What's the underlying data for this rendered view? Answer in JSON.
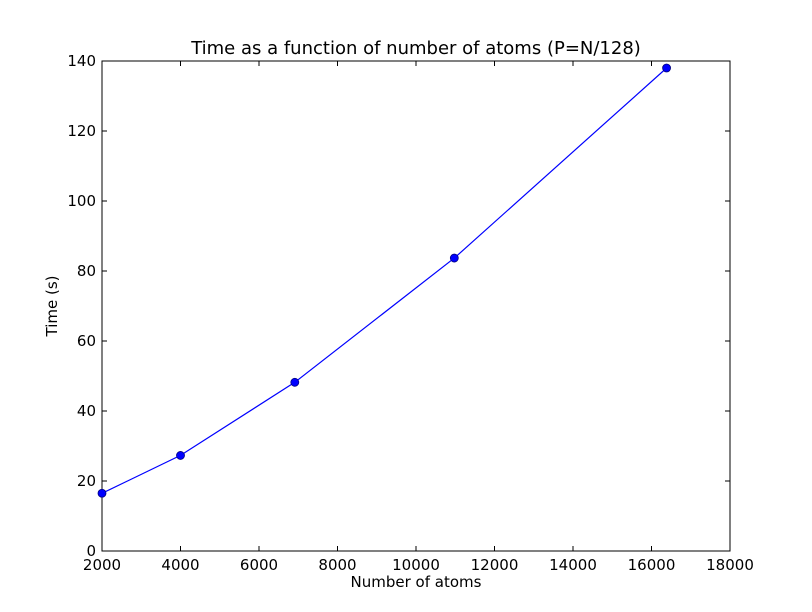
{
  "chart_data": {
    "type": "line",
    "title": "Time as a function of number of atoms (P=N/128)",
    "xlabel": "Number of atoms",
    "ylabel": "Time (s)",
    "xlim": [
      2000,
      18000
    ],
    "ylim": [
      0,
      140
    ],
    "xticks": [
      2000,
      4000,
      6000,
      8000,
      10000,
      12000,
      14000,
      16000,
      18000
    ],
    "yticks": [
      0,
      20,
      40,
      60,
      80,
      100,
      120,
      140
    ],
    "grid": false,
    "series": [
      {
        "color": "#0000ff",
        "marker": "circle",
        "x": [
          2000,
          4000,
          6912,
          10976,
          16384
        ],
        "y": [
          16.5,
          27.3,
          48.2,
          83.7,
          138.0
        ]
      }
    ]
  }
}
